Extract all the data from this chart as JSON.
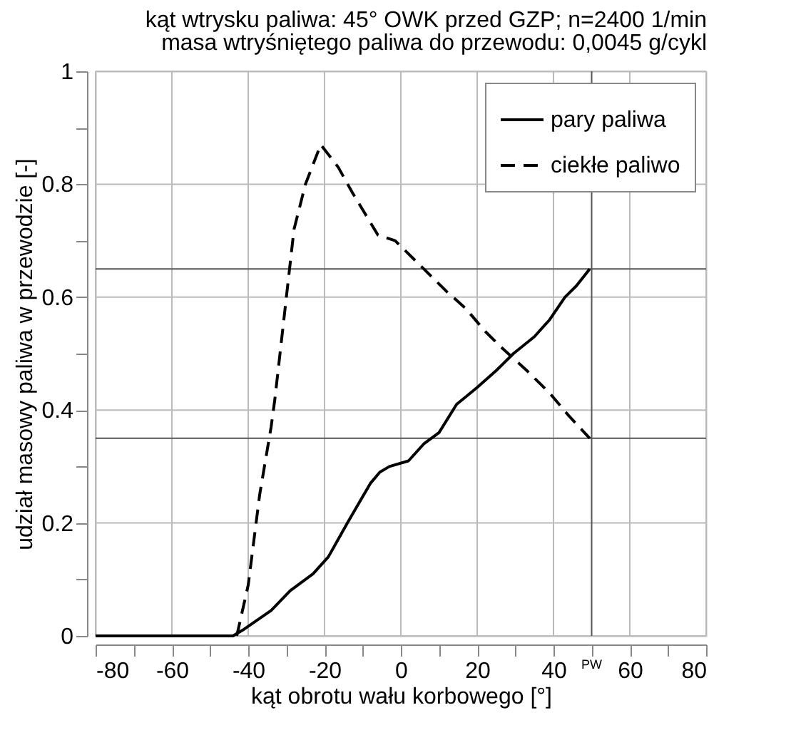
{
  "chart_data": {
    "type": "line",
    "title": "kąt wtrysku paliwa: 45° OWK przed GZP;  n=2400  1/min",
    "subtitle": "masa wtryśniętego paliwa do przewodu: 0,0045 g/cykl",
    "xlabel": "kąt obrotu wału korbowego [°]",
    "ylabel": "udział masowy paliwa w przewodzie [-]",
    "xlim": [
      -80,
      80
    ],
    "xticks": [
      -80,
      {
        "value": -70,
        "label": null
      },
      -60,
      {
        "value": -50,
        "label": null
      },
      -40,
      {
        "value": -30,
        "label": null
      },
      -20,
      {
        "value": -10,
        "label": null
      },
      0,
      {
        "value": 10,
        "label": null
      },
      20,
      {
        "value": 30,
        "label": null
      },
      40,
      {
        "value": 50,
        "label": null
      },
      60,
      {
        "value": 70,
        "label": null
      },
      80
    ],
    "ylim": [
      0,
      1
    ],
    "yticks": [
      0,
      {
        "value": 0.1,
        "label": null
      },
      0.2,
      {
        "value": 0.3,
        "label": null
      },
      0.4,
      {
        "value": 0.5,
        "label": null
      },
      0.6,
      {
        "value": 0.7,
        "label": null
      },
      0.8,
      {
        "value": 0.9,
        "label": null
      },
      1
    ],
    "grid": true,
    "legend": "top right",
    "marker": "none",
    "ref_lines": [
      {
        "axis": "y",
        "value": 0.65,
        "label": null,
        "color": "#555555"
      },
      {
        "axis": "y",
        "value": 0.35,
        "label": null,
        "color": "#555555"
      },
      {
        "axis": "x",
        "value": 50,
        "label": "PW",
        "color": "#555555"
      }
    ],
    "series": [
      {
        "name": "pary paliwa",
        "color": "#000000",
        "line_style": "solid",
        "x": [
          -80,
          -44,
          -41.5,
          -34,
          -29,
          -23,
          -19,
          -14,
          -8,
          -5.5,
          -3,
          2,
          6,
          10,
          14.6,
          20,
          25,
          29.5,
          35,
          39,
          43,
          46,
          49.5
        ],
        "values": [
          0,
          0,
          0.01,
          0.045,
          0.08,
          0.11,
          0.14,
          0.2,
          0.27,
          0.29,
          0.3,
          0.31,
          0.34,
          0.36,
          0.41,
          0.44,
          0.47,
          0.5,
          0.53,
          0.56,
          0.6,
          0.62,
          0.65
        ]
      },
      {
        "name": "ciekłe paliwo",
        "color": "#000000",
        "line_style": "dashed",
        "x": [
          -43,
          -40,
          -37,
          -34,
          -33,
          -30,
          -28,
          -25,
          -21,
          -16.4,
          -12.7,
          -6,
          -1.5,
          6,
          12,
          17,
          22,
          26.5,
          33,
          39,
          44,
          49.5
        ],
        "values": [
          0,
          0.09,
          0.25,
          0.37,
          0.42,
          0.6,
          0.72,
          0.8,
          0.87,
          0.83,
          0.785,
          0.71,
          0.7,
          0.65,
          0.61,
          0.58,
          0.54,
          0.51,
          0.47,
          0.43,
          0.39,
          0.35
        ]
      }
    ]
  }
}
